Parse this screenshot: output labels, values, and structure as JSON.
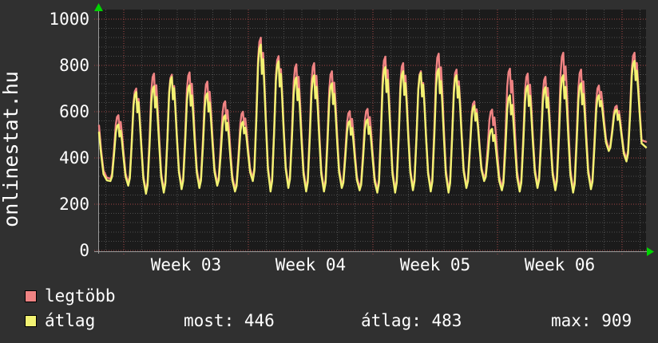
{
  "branding": {
    "site": "onlinestat.hu"
  },
  "legend": {
    "series": [
      {
        "label": "legtöbb",
        "color": "#ef8383"
      },
      {
        "label": "átlag",
        "color": "#f2f272"
      }
    ]
  },
  "stats": {
    "most": {
      "label": "most:",
      "value": "446"
    },
    "atlag": {
      "label": "átlag:",
      "value": "483"
    },
    "max": {
      "label": "max:",
      "value": "909"
    }
  },
  "chart_data": {
    "type": "line",
    "title": "",
    "xlabel": "",
    "ylabel": "",
    "x_axis": {
      "tick_labels": [
        "Week 03",
        "Week 04",
        "Week 05",
        "Week 06"
      ],
      "tick_center_day": [
        4.5,
        11.5,
        18.5,
        25.5
      ],
      "week_grid_days": [
        1,
        8,
        15,
        22,
        29
      ],
      "minor_grid_step_days": 1,
      "domain_days": [
        -0.39,
        30.35
      ]
    },
    "y_axis": {
      "ticks": [
        0,
        200,
        400,
        600,
        800,
        1000
      ],
      "minor_step": 40,
      "ylim": [
        0,
        1050
      ]
    },
    "colors": {
      "outer_bg": "#303030",
      "plot_bg": "#1b1b1b",
      "grid_minor": "#4d4d4d",
      "grid_major": "#a04444",
      "axis": "#9a9a9a",
      "arrow": "#00d400",
      "text": "#ffffff"
    },
    "series": [
      {
        "name": "legtöbb",
        "key": "max",
        "color": "#ef8383",
        "style": "LINE2",
        "role": "daily maximum visitors"
      },
      {
        "name": "átlag",
        "key": "avg",
        "color": "#f2f272",
        "style": "LINE2",
        "role": "daily average visitors"
      }
    ],
    "trough_gap_max_series": 10,
    "day_profile": {
      "rise": [
        [
          0.25,
          0.0
        ],
        [
          0.34,
          0.08
        ],
        [
          0.45,
          0.45
        ],
        [
          0.55,
          0.85
        ],
        [
          0.62,
          0.97
        ],
        [
          0.7,
          1.0
        ]
      ],
      "fall": [
        [
          0.76,
          0.8
        ],
        [
          0.83,
          0.9
        ],
        [
          0.9,
          0.72
        ],
        [
          1.0,
          0.42
        ],
        [
          1.1,
          0.15
        ]
      ]
    },
    "lead_in": {
      "max": [
        [
          -0.39,
          540
        ],
        [
          -0.28,
          438
        ],
        [
          -0.14,
          345
        ],
        [
          0.05,
          315
        ]
      ],
      "avg": [
        [
          -0.39,
          510
        ],
        [
          -0.28,
          420
        ],
        [
          -0.14,
          330
        ],
        [
          0.05,
          303
        ]
      ]
    },
    "days": [
      {
        "t": 300,
        "max": 585,
        "avg": 545
      },
      {
        "t": 280,
        "max": 700,
        "avg": 685
      },
      {
        "t": 245,
        "max": 765,
        "avg": 710
      },
      {
        "t": 250,
        "max": 760,
        "avg": 750
      },
      {
        "t": 265,
        "max": 770,
        "avg": 715
      },
      {
        "t": 270,
        "max": 730,
        "avg": 680
      },
      {
        "t": 280,
        "max": 645,
        "avg": 585
      },
      {
        "t": 255,
        "max": 600,
        "avg": 557
      },
      {
        "t": 300,
        "max": 920,
        "avg": 890
      },
      {
        "t": 255,
        "max": 840,
        "avg": 818
      },
      {
        "t": 270,
        "max": 805,
        "avg": 748
      },
      {
        "t": 255,
        "max": 810,
        "avg": 758
      },
      {
        "t": 255,
        "max": 775,
        "avg": 723
      },
      {
        "t": 270,
        "max": 602,
        "avg": 560
      },
      {
        "t": 260,
        "max": 612,
        "avg": 567
      },
      {
        "t": 250,
        "max": 838,
        "avg": 793
      },
      {
        "t": 250,
        "max": 810,
        "avg": 775
      },
      {
        "t": 260,
        "max": 775,
        "avg": 768
      },
      {
        "t": 255,
        "max": 851,
        "avg": 786
      },
      {
        "t": 250,
        "max": 782,
        "avg": 758
      },
      {
        "t": 270,
        "max": 644,
        "avg": 626
      },
      {
        "t": 300,
        "max": 609,
        "avg": 526
      },
      {
        "t": 260,
        "max": 786,
        "avg": 671
      },
      {
        "t": 255,
        "max": 765,
        "avg": 713
      },
      {
        "t": 270,
        "max": 751,
        "avg": 706
      },
      {
        "t": 260,
        "max": 855,
        "avg": 758
      },
      {
        "t": 250,
        "max": 782,
        "avg": 723
      },
      {
        "t": 265,
        "max": 713,
        "avg": 671
      },
      {
        "t": 430,
        "max": 626,
        "avg": 609
      },
      {
        "t": 385,
        "max": 855,
        "avg": 820
      }
    ],
    "end": {
      "day": 30.35,
      "next_trough": 400,
      "max": 470,
      "avg": 446
    }
  }
}
